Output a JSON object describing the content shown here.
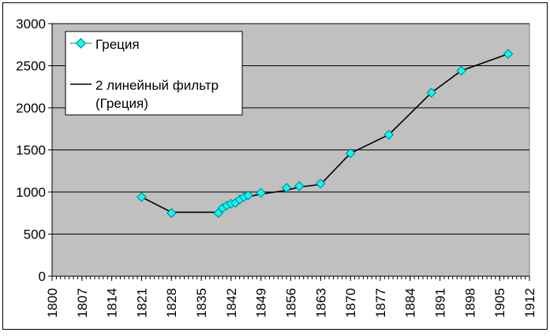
{
  "colors": {
    "plot_background": "#c0c0c0",
    "gridline": "#000000",
    "marker_fill": "#00ffff",
    "marker_stroke": "#008080",
    "trendline": "#000000",
    "chart_background": "#ffffff"
  },
  "chart_data": {
    "type": "scatter",
    "x_axis": {
      "min": 1800,
      "max": 1912,
      "tick_labels": [
        "1800",
        "1807",
        "1814",
        "1821",
        "1828",
        "1835",
        "1842",
        "1849",
        "1856",
        "1863",
        "1870",
        "1877",
        "1884",
        "1891",
        "1898",
        "1905",
        "1912"
      ],
      "tick_label_rotation": "vertical"
    },
    "y_axis": {
      "min": 0,
      "max": 3000,
      "tick_labels": [
        "0",
        "500",
        "1000",
        "1500",
        "2000",
        "2500",
        "3000"
      ]
    },
    "grid": {
      "horizontal": true,
      "vertical": false
    },
    "legend_position": "top-left",
    "series": [
      {
        "name": "Греция",
        "marker": "diamond",
        "points": [
          [
            1821,
            940
          ],
          [
            1828,
            750
          ],
          [
            1839,
            750
          ],
          [
            1840,
            810
          ],
          [
            1841,
            840
          ],
          [
            1842,
            860
          ],
          [
            1843,
            870
          ],
          [
            1844,
            910
          ],
          [
            1845,
            940
          ],
          [
            1846,
            960
          ],
          [
            1849,
            990
          ],
          [
            1855,
            1050
          ],
          [
            1858,
            1070
          ],
          [
            1863,
            1100
          ],
          [
            1870,
            1460
          ],
          [
            1879,
            1680
          ],
          [
            1889,
            2180
          ],
          [
            1896,
            2440
          ],
          [
            1907,
            2640
          ]
        ]
      }
    ],
    "trendlines": [
      {
        "name": "2 линейный фильтр",
        "name_line2": "(Греция)",
        "points": [
          [
            1821,
            940
          ],
          [
            1828,
            760
          ],
          [
            1839,
            760
          ],
          [
            1840,
            780
          ],
          [
            1842,
            840
          ],
          [
            1844,
            890
          ],
          [
            1846,
            945
          ],
          [
            1849,
            975
          ],
          [
            1855,
            1020
          ],
          [
            1858,
            1060
          ],
          [
            1863,
            1090
          ],
          [
            1870,
            1460
          ],
          [
            1879,
            1680
          ],
          [
            1889,
            2180
          ],
          [
            1896,
            2440
          ],
          [
            1907,
            2640
          ]
        ]
      }
    ]
  }
}
